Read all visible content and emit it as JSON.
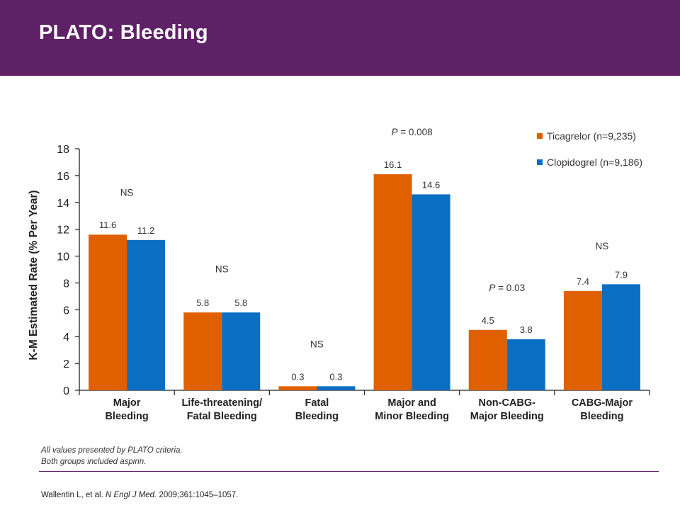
{
  "title": "PLATO: Bleeding",
  "footnotes": [
    "All values presented by PLATO criteria.",
    "Both groups included aspirin."
  ],
  "citation": {
    "authors": "Wallentin L, et al.",
    "journal": "N Engl J Med.",
    "details": "2009;361:1045–1057."
  },
  "colors": {
    "header": "#5e2165",
    "ticagrelor": "#e06000",
    "clopidogrel": "#0a6fc2"
  },
  "chart_data": {
    "type": "bar",
    "ylabel": "K-M Estimated Rate (% Per Year)",
    "xlabel": "",
    "ylim": [
      0,
      18
    ],
    "yticks": [
      0,
      2,
      4,
      6,
      8,
      10,
      12,
      14,
      16,
      18
    ],
    "grid": false,
    "legend_position": "top-right",
    "categories": [
      [
        "Major",
        "Bleeding"
      ],
      [
        "Life-threatening/",
        "Fatal Bleeding"
      ],
      [
        "Fatal",
        "Bleeding"
      ],
      [
        "Major and",
        "Minor Bleeding"
      ],
      [
        "Non-CABG-",
        "Major Bleeding"
      ],
      [
        "CABG-Major",
        "Bleeding"
      ]
    ],
    "series": [
      {
        "name": "Ticagrelor (n=9,235)",
        "color": "#e06000",
        "values": [
          11.6,
          5.8,
          0.3,
          16.1,
          4.5,
          7.4
        ],
        "labels": [
          "11.6",
          "5.8",
          "0.3",
          "16.1",
          "4.5",
          "7.4"
        ]
      },
      {
        "name": "Clopidogrel (n=9,186)",
        "color": "#0a6fc2",
        "values": [
          11.2,
          5.8,
          0.3,
          14.6,
          3.8,
          7.9
        ],
        "labels": [
          "11.2",
          "5.8",
          "0.3",
          "14.6",
          "3.8",
          "7.9"
        ]
      }
    ],
    "annotations": [
      {
        "category": 0,
        "text": "NS",
        "y": 14.5,
        "italic_p": false
      },
      {
        "category": 1,
        "text": "NS",
        "y": 8.8,
        "italic_p": false
      },
      {
        "category": 2,
        "text": "NS",
        "y": 3.2,
        "italic_p": false
      },
      {
        "category": 3,
        "p": "P",
        "text": " = 0.008",
        "y": 19.0,
        "italic_p": true
      },
      {
        "category": 4,
        "p": "P",
        "text": " = 0.03",
        "y": 7.4,
        "italic_p": true
      },
      {
        "category": 5,
        "text": "NS",
        "y": 10.5,
        "italic_p": false
      }
    ]
  }
}
